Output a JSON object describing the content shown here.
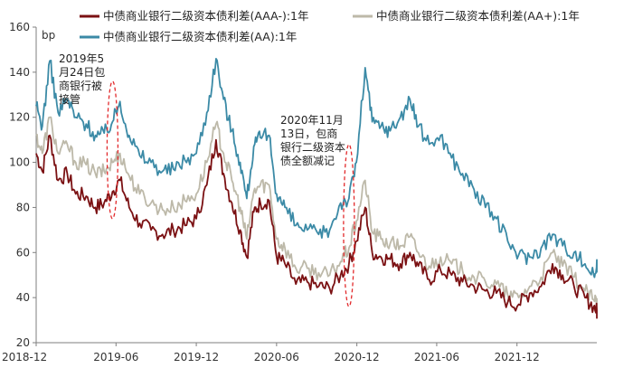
{
  "chart_data": {
    "type": "line",
    "ylabel": "bp",
    "ylim": [
      20,
      160
    ],
    "yticks": [
      20,
      40,
      60,
      80,
      100,
      120,
      140,
      160
    ],
    "xlim": [
      "2018-12",
      "2022-06"
    ],
    "xticks": [
      "2018-12",
      "2019-06",
      "2019-12",
      "2020-06",
      "2020-12",
      "2021-06",
      "2021-12"
    ],
    "grid": false,
    "legend_position": "top",
    "series": [
      {
        "name": "中债商业银行二级资本债利差(AAA-):1年",
        "color": "#7b1113",
        "points": [
          [
            "2018-12-01",
            104
          ],
          [
            "2018-12-15",
            96
          ],
          [
            "2019-01-01",
            112
          ],
          [
            "2019-01-20",
            92
          ],
          [
            "2019-02-10",
            95
          ],
          [
            "2019-03-01",
            86
          ],
          [
            "2019-03-25",
            85
          ],
          [
            "2019-04-15",
            80
          ],
          [
            "2019-05-05",
            82
          ],
          [
            "2019-05-24",
            87
          ],
          [
            "2019-06-10",
            92
          ],
          [
            "2019-07-01",
            80
          ],
          [
            "2019-07-25",
            73
          ],
          [
            "2019-08-20",
            70
          ],
          [
            "2019-09-15",
            68
          ],
          [
            "2019-10-10",
            70
          ],
          [
            "2019-11-05",
            72
          ],
          [
            "2019-12-01",
            75
          ],
          [
            "2019-12-25",
            90
          ],
          [
            "2020-01-15",
            110
          ],
          [
            "2020-02-01",
            95
          ],
          [
            "2020-02-20",
            82
          ],
          [
            "2020-03-10",
            70
          ],
          [
            "2020-03-25",
            58
          ],
          [
            "2020-04-10",
            78
          ],
          [
            "2020-04-25",
            82
          ],
          [
            "2020-05-15",
            83
          ],
          [
            "2020-06-01",
            58
          ],
          [
            "2020-06-20",
            55
          ],
          [
            "2020-07-15",
            46
          ],
          [
            "2020-08-10",
            47
          ],
          [
            "2020-09-05",
            45
          ],
          [
            "2020-09-30",
            44
          ],
          [
            "2020-10-25",
            50
          ],
          [
            "2020-11-13",
            55
          ],
          [
            "2020-11-30",
            65
          ],
          [
            "2020-12-20",
            80
          ],
          [
            "2021-01-05",
            60
          ],
          [
            "2021-01-25",
            58
          ],
          [
            "2021-02-15",
            57
          ],
          [
            "2021-03-10",
            55
          ],
          [
            "2021-04-01",
            60
          ],
          [
            "2021-04-20",
            54
          ],
          [
            "2021-05-15",
            48
          ],
          [
            "2021-06-10",
            52
          ],
          [
            "2021-07-05",
            50
          ],
          [
            "2021-07-30",
            47
          ],
          [
            "2021-08-25",
            45
          ],
          [
            "2021-09-20",
            43
          ],
          [
            "2021-10-15",
            42
          ],
          [
            "2021-11-10",
            38
          ],
          [
            "2021-12-05",
            37
          ],
          [
            "2021-12-30",
            42
          ],
          [
            "2022-01-25",
            45
          ],
          [
            "2022-02-20",
            55
          ],
          [
            "2022-03-15",
            50
          ],
          [
            "2022-04-10",
            45
          ],
          [
            "2022-05-05",
            40
          ],
          [
            "2022-05-25",
            36
          ],
          [
            "2022-06-05",
            33
          ]
        ]
      },
      {
        "name": "中债商业银行二级资本债利差(AA+):1年",
        "color": "#bdb9a9",
        "points": [
          [
            "2018-12-01",
            112
          ],
          [
            "2018-12-15",
            104
          ],
          [
            "2019-01-01",
            120
          ],
          [
            "2019-01-20",
            104
          ],
          [
            "2019-02-10",
            108
          ],
          [
            "2019-03-01",
            100
          ],
          [
            "2019-03-25",
            99
          ],
          [
            "2019-04-15",
            95
          ],
          [
            "2019-05-05",
            96
          ],
          [
            "2019-05-24",
            100
          ],
          [
            "2019-06-10",
            104
          ],
          [
            "2019-07-01",
            94
          ],
          [
            "2019-07-25",
            86
          ],
          [
            "2019-08-20",
            82
          ],
          [
            "2019-09-15",
            79
          ],
          [
            "2019-10-10",
            80
          ],
          [
            "2019-11-05",
            83
          ],
          [
            "2019-12-01",
            86
          ],
          [
            "2019-12-25",
            100
          ],
          [
            "2020-01-15",
            117
          ],
          [
            "2020-02-01",
            104
          ],
          [
            "2020-02-20",
            92
          ],
          [
            "2020-03-10",
            80
          ],
          [
            "2020-03-25",
            66
          ],
          [
            "2020-04-10",
            87
          ],
          [
            "2020-04-25",
            90
          ],
          [
            "2020-05-15",
            90
          ],
          [
            "2020-06-01",
            66
          ],
          [
            "2020-06-20",
            62
          ],
          [
            "2020-07-15",
            53
          ],
          [
            "2020-08-10",
            53
          ],
          [
            "2020-09-05",
            51
          ],
          [
            "2020-09-30",
            50
          ],
          [
            "2020-10-25",
            56
          ],
          [
            "2020-11-13",
            62
          ],
          [
            "2020-11-30",
            74
          ],
          [
            "2020-12-20",
            92
          ],
          [
            "2021-01-05",
            69
          ],
          [
            "2021-01-25",
            66
          ],
          [
            "2021-02-15",
            64
          ],
          [
            "2021-03-10",
            63
          ],
          [
            "2021-04-01",
            67
          ],
          [
            "2021-04-20",
            60
          ],
          [
            "2021-05-15",
            54
          ],
          [
            "2021-06-10",
            58
          ],
          [
            "2021-07-05",
            55
          ],
          [
            "2021-07-30",
            52
          ],
          [
            "2021-08-25",
            49
          ],
          [
            "2021-09-20",
            47
          ],
          [
            "2021-10-15",
            46
          ],
          [
            "2021-11-10",
            41
          ],
          [
            "2021-12-05",
            40
          ],
          [
            "2021-12-30",
            45
          ],
          [
            "2022-01-25",
            49
          ],
          [
            "2022-02-20",
            60
          ],
          [
            "2022-03-15",
            54
          ],
          [
            "2022-04-10",
            49
          ],
          [
            "2022-05-05",
            43
          ],
          [
            "2022-05-25",
            39
          ],
          [
            "2022-06-05",
            37
          ]
        ]
      },
      {
        "name": "中债商业银行二级资本债利差(AA):1年",
        "color": "#3b8aa6",
        "points": [
          [
            "2018-12-01",
            125
          ],
          [
            "2018-12-15",
            116
          ],
          [
            "2019-01-01",
            145
          ],
          [
            "2019-01-20",
            122
          ],
          [
            "2019-02-10",
            128
          ],
          [
            "2019-03-01",
            120
          ],
          [
            "2019-03-25",
            117
          ],
          [
            "2019-04-15",
            112
          ],
          [
            "2019-05-05",
            113
          ],
          [
            "2019-05-24",
            118
          ],
          [
            "2019-06-10",
            127
          ],
          [
            "2019-07-01",
            112
          ],
          [
            "2019-07-25",
            103
          ],
          [
            "2019-08-20",
            100
          ],
          [
            "2019-09-15",
            96
          ],
          [
            "2019-10-10",
            97
          ],
          [
            "2019-11-05",
            101
          ],
          [
            "2019-12-01",
            104
          ],
          [
            "2019-12-25",
            122
          ],
          [
            "2020-01-15",
            146
          ],
          [
            "2020-02-01",
            128
          ],
          [
            "2020-02-20",
            114
          ],
          [
            "2020-03-10",
            100
          ],
          [
            "2020-03-25",
            84
          ],
          [
            "2020-04-10",
            107
          ],
          [
            "2020-04-25",
            111
          ],
          [
            "2020-05-15",
            112
          ],
          [
            "2020-06-01",
            86
          ],
          [
            "2020-06-20",
            80
          ],
          [
            "2020-07-15",
            72
          ],
          [
            "2020-08-10",
            70
          ],
          [
            "2020-09-05",
            68
          ],
          [
            "2020-09-30",
            70
          ],
          [
            "2020-10-25",
            82
          ],
          [
            "2020-11-13",
            84
          ],
          [
            "2020-11-30",
            100
          ],
          [
            "2020-12-20",
            142
          ],
          [
            "2021-01-05",
            118
          ],
          [
            "2021-01-25",
            116
          ],
          [
            "2021-02-15",
            114
          ],
          [
            "2021-03-10",
            120
          ],
          [
            "2021-04-01",
            128
          ],
          [
            "2021-04-20",
            116
          ],
          [
            "2021-05-15",
            108
          ],
          [
            "2021-06-10",
            112
          ],
          [
            "2021-07-05",
            102
          ],
          [
            "2021-07-30",
            95
          ],
          [
            "2021-08-25",
            88
          ],
          [
            "2021-09-20",
            80
          ],
          [
            "2021-10-15",
            75
          ],
          [
            "2021-11-10",
            65
          ],
          [
            "2021-12-05",
            59
          ],
          [
            "2021-12-30",
            58
          ],
          [
            "2022-01-25",
            62
          ],
          [
            "2022-02-20",
            68
          ],
          [
            "2022-03-15",
            63
          ],
          [
            "2022-04-10",
            60
          ],
          [
            "2022-05-05",
            55
          ],
          [
            "2022-05-25",
            50
          ],
          [
            "2022-06-05",
            55
          ]
        ]
      }
    ],
    "annotations": [
      {
        "lines": [
          "2019年5",
          "月24日包",
          "商银行被",
          "接管"
        ],
        "ellipse_date": "2019-05-24",
        "ellipse_y": [
          75,
          136
        ],
        "color": "#e2292b"
      },
      {
        "lines": [
          "2020年11月",
          "13日，包商",
          "银行二级资本",
          "债全额减记"
        ],
        "ellipse_date": "2020-11-13",
        "ellipse_y": [
          36,
          108
        ],
        "color": "#e2292b"
      }
    ]
  }
}
